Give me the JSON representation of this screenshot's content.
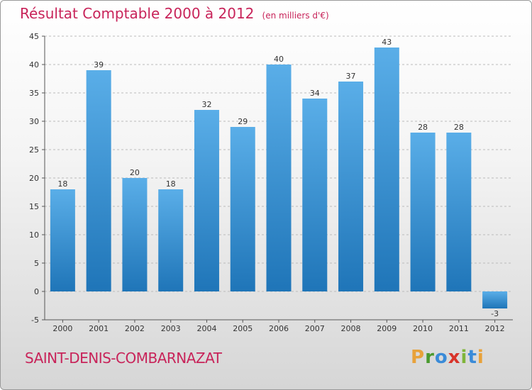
{
  "title": {
    "main": "Résultat Comptable 2000 à 2012",
    "unit": "(en milliers d'€)"
  },
  "footer": {
    "city": "SAINT-DENIS-COMBARNAZAT",
    "brand": "Proxiti"
  },
  "colors": {
    "bar_top": "#5aaee8",
    "bar_bottom": "#1f75b8",
    "title": "#c8245a",
    "grid": "#bbbbbb"
  },
  "chart_data": {
    "type": "bar",
    "title": "Résultat Comptable 2000 à 2012",
    "xlabel": "",
    "ylabel": "",
    "ylim": [
      -5,
      45
    ],
    "yticks": [
      -5,
      0,
      5,
      10,
      15,
      20,
      25,
      30,
      35,
      40,
      45
    ],
    "categories": [
      "2000",
      "2001",
      "2002",
      "2003",
      "2004",
      "2005",
      "2006",
      "2007",
      "2008",
      "2009",
      "2010",
      "2011",
      "2012"
    ],
    "values": [
      18,
      39,
      20,
      18,
      32,
      29,
      40,
      34,
      37,
      43,
      28,
      28,
      -3
    ],
    "grid": "y-dashed"
  }
}
